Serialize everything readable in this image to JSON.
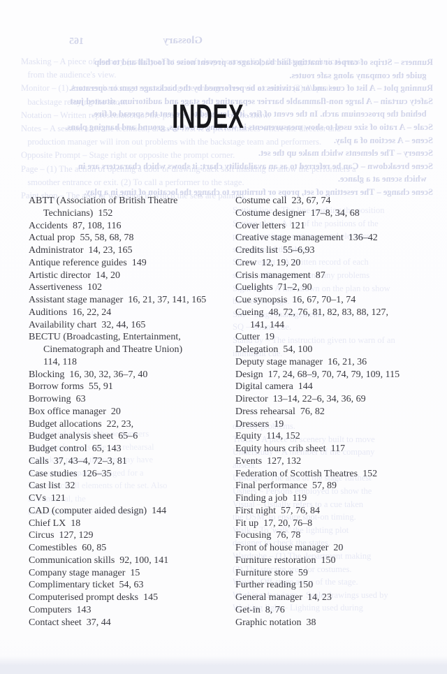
{
  "page": {
    "title": "INDEX"
  },
  "index": {
    "left": [
      {
        "text": "ABTT (Association of British Theatre"
      },
      {
        "text": "Technicians)  152",
        "indent": true
      },
      {
        "text": "Accidents  87, 108, 116"
      },
      {
        "text": "Actual prop  55, 58, 68, 78"
      },
      {
        "text": "Administrator  14, 23, 165"
      },
      {
        "text": "Antique reference guides  149"
      },
      {
        "text": "Artistic director  14, 20"
      },
      {
        "text": "Assertiveness  102"
      },
      {
        "text": "Assistant stage manager  16, 21, 37, 141, 165"
      },
      {
        "text": "Auditions  16, 22, 24"
      },
      {
        "text": "Availability chart  32, 44, 165"
      },
      {
        "text": "BECTU (Broadcasting, Entertainment,"
      },
      {
        "text": "Cinematograph and Theatre Union)",
        "indent": true
      },
      {
        "text": "114, 118",
        "indent": true
      },
      {
        "text": "Blocking  16, 30, 32, 36–7, 40"
      },
      {
        "text": "Borrow forms  55, 91"
      },
      {
        "text": "Borrowing  63"
      },
      {
        "text": "Box office manager  20"
      },
      {
        "text": "Budget allocations  22, 23,"
      },
      {
        "text": "Budget analysis sheet  65–6"
      },
      {
        "text": "Budget control  65, 143"
      },
      {
        "text": "Calls  37, 43–4, 72–3, 81"
      },
      {
        "text": "Case studies  126–35"
      },
      {
        "text": "Cast list  32"
      },
      {
        "text": "CVs  121"
      },
      {
        "text": "CAD (computer aided design)  144"
      },
      {
        "text": "Chief LX  18"
      },
      {
        "text": "Circus  127, 129"
      },
      {
        "text": "Comestibles  60, 85"
      },
      {
        "text": "Communication skills  92, 100, 141"
      },
      {
        "text": "Company stage manager  15"
      },
      {
        "text": "Complimentary ticket  54, 63"
      },
      {
        "text": "Computerised prompt desks  145"
      },
      {
        "text": "Computers  143"
      },
      {
        "text": "Contact sheet  37, 44"
      }
    ],
    "right": [
      {
        "text": "Costume call  23, 67, 74"
      },
      {
        "text": "Costume designer  17–8, 34, 68"
      },
      {
        "text": "Cover letters  121"
      },
      {
        "text": "Creative stage management  136–42"
      },
      {
        "text": "Credits list  55–6,93"
      },
      {
        "text": "Crew  12, 19, 20"
      },
      {
        "text": "Crisis management  87"
      },
      {
        "text": "Cuelights  71–2, 90"
      },
      {
        "text": "Cue synopsis  16, 67, 70–1, 74"
      },
      {
        "text": "Cueing  48, 72, 76, 81, 82, 83, 88, 127,"
      },
      {
        "text": "141, 144",
        "indent": true
      },
      {
        "text": "Cutter  19"
      },
      {
        "text": "Delegation  54, 100"
      },
      {
        "text": "Deputy stage manager  16, 21, 36"
      },
      {
        "text": "Design  17, 24, 68–9, 70, 74, 79, 109, 115"
      },
      {
        "text": "Digital camera  144"
      },
      {
        "text": "Director  13–14, 22–6, 34, 36, 69"
      },
      {
        "text": "Dress rehearsal  76, 82"
      },
      {
        "text": "Dressers  19"
      },
      {
        "text": "Equity  114, 152"
      },
      {
        "text": "Equity hours crib sheet  117"
      },
      {
        "text": "Events  127, 132"
      },
      {
        "text": "Federation of Scottish Theatres  152"
      },
      {
        "text": "Final performance  57, 89"
      },
      {
        "text": "Finding a job  119"
      },
      {
        "text": "First night  57, 76, 84"
      },
      {
        "text": "Fit up  17, 20, 76–8"
      },
      {
        "text": "Focusing  76, 78"
      },
      {
        "text": "Front of house manager  20"
      },
      {
        "text": "Furniture restoration  150"
      },
      {
        "text": "Furniture store  59"
      },
      {
        "text": "Further reading 150"
      },
      {
        "text": "General manager  14, 23"
      },
      {
        "text": "Get-in  8, 76"
      },
      {
        "text": "Graphic notation  38"
      }
    ]
  },
  "bleedthrough": {
    "reverse_header_title": "Glossary",
    "reverse_header_page_number": "165",
    "reverse_top_lines": [
      {
        "text": "Runners – Strips of carpet or matting laid backstage to prevent noise of footfall and to help"
      },
      {
        "text": "   guide the company along safe routes."
      },
      {
        "text": "Running plot – A list of cues and/or activities to be performed by the backstage team or operators."
      },
      {
        "text": "Safety curtain – A large non-flammable barrier separating the stage and auditorium, situated just"
      },
      {
        "text": "   behind the proscenium arch. In the event of fire, it is lowered to prevent the spread of fire."
      },
      {
        "text": "Scale – A ratio of size used to show measurements in working drawings, ground and hanging plans."
      },
      {
        "text": "Scene – A section of a play."
      },
      {
        "text": "Scenery – The elements which make up the set."
      },
      {
        "text": "Scene breakdown – Can be referred to as an availability chart; it shows which characters are in"
      },
      {
        "text": "   which scene at a glance."
      },
      {
        "text": "Scene change – The resetting of set, props or furniture to change the location of time in a play."
      }
    ],
    "facing_top_lines": [
      {
        "text": "Masking – A piece of scenery (usually a flat or soft drape) concealing the offstage technical areas"
      },
      {
        "text": "   from the audience's view."
      },
      {
        "text": "Monitor – (1) A screen backstage reproducing the onstage view via a camera. (2) A speaker"
      },
      {
        "text": "   backstage relaying the show."
      },
      {
        "text": "Notation – Written representation of the practical elements of the show."
      },
      {
        "text": "Notes – A session after the technical, dress or first few performances where the director and"
      },
      {
        "text": "   production manager will iron out problems with the backstage team and performers."
      },
      {
        "text": "Opposite Prompt – Stage right or opposite the prompt corner."
      },
      {
        "text": "Page – (1) The action of opening a door or drawing back soft masking to allow the performers a"
      },
      {
        "text": "   smoother entrance or exit. (2) To call a performer to the stage."
      },
      {
        "text": "Paint shop – The area or workshop in which the sets are painted."
      }
    ],
    "facing_mid_right_lines": [
      {
        "text": "Setting line – The line marking the position"
      },
      {
        "text": "Setting plot – A list of the positions of the"
      },
      {
        "text": "props, furniture, costumes and electrics"
      },
      {
        "text": "setting up of the show."
      },
      {
        "text": "Show report – A written record of each"
      },
      {
        "text": "script, audience size, and any problems"
      },
      {
        "text": "Sight line – A line drawn on the plan to show"
      },
      {
        "text": "be seen onstage."
      },
      {
        "text": "SM – Stage management."
      },
      {
        "text": "SQ – Sound cue."
      },
      {
        "text": "Stand by – The instruction given to warn of an"
      },
      {
        "text": "imminent cue."
      }
    ],
    "facing_low_right_lines": [
      {
        "text": "out any problems."
      },
      {
        "text": "Truck – A piece of scenery built to move"
      },
      {
        "text": "Understudy – A member of the company"
      },
      {
        "text": "absent."
      },
      {
        "text": "Upstage – The area of the stage furthest"
      },
      {
        "text": "Ushers – Persons employed to show the"
      },
      {
        "text": "Visual – Usually refers to a cue taken"
      },
      {
        "text": "the DSM, to ensure spot-on timing."
      },
      {
        "text": "Walk – To 'walk' the lighting plot"
      },
      {
        "text": "designer to check the states."
      },
      {
        "text": "Wardrobe – (1) The department making"
      },
      {
        "text": "(2) The storage area for costumes."
      },
      {
        "text": "Ways – Off-stage areas of the stage."
      },
      {
        "text": "Working drawings – Scale drawings used by"
      },
      {
        "text": "Working light – Lighting used during"
      }
    ],
    "facing_low_left_lines": [
      {
        "text": "The period of work the performers"
      },
      {
        "text": "a lead performer's role is a rehearsal"
      },
      {
        "text": "A truck of pieces the company have"
      },
      {
        "text": "A theatre company engaged for a"
      },
      {
        "text": "To get back all elements of the set. Also"
      },
      {
        "text": "In a musical, the"
      },
      {
        "text": "environment at the end of a show."
      }
    ]
  },
  "colors": {
    "ink": "#393941",
    "title_ink": "#17171b",
    "ghost_mirrored": "#a9afd6",
    "ghost_faint": "#c9cde9",
    "page_edge": "#e9ebf4"
  }
}
